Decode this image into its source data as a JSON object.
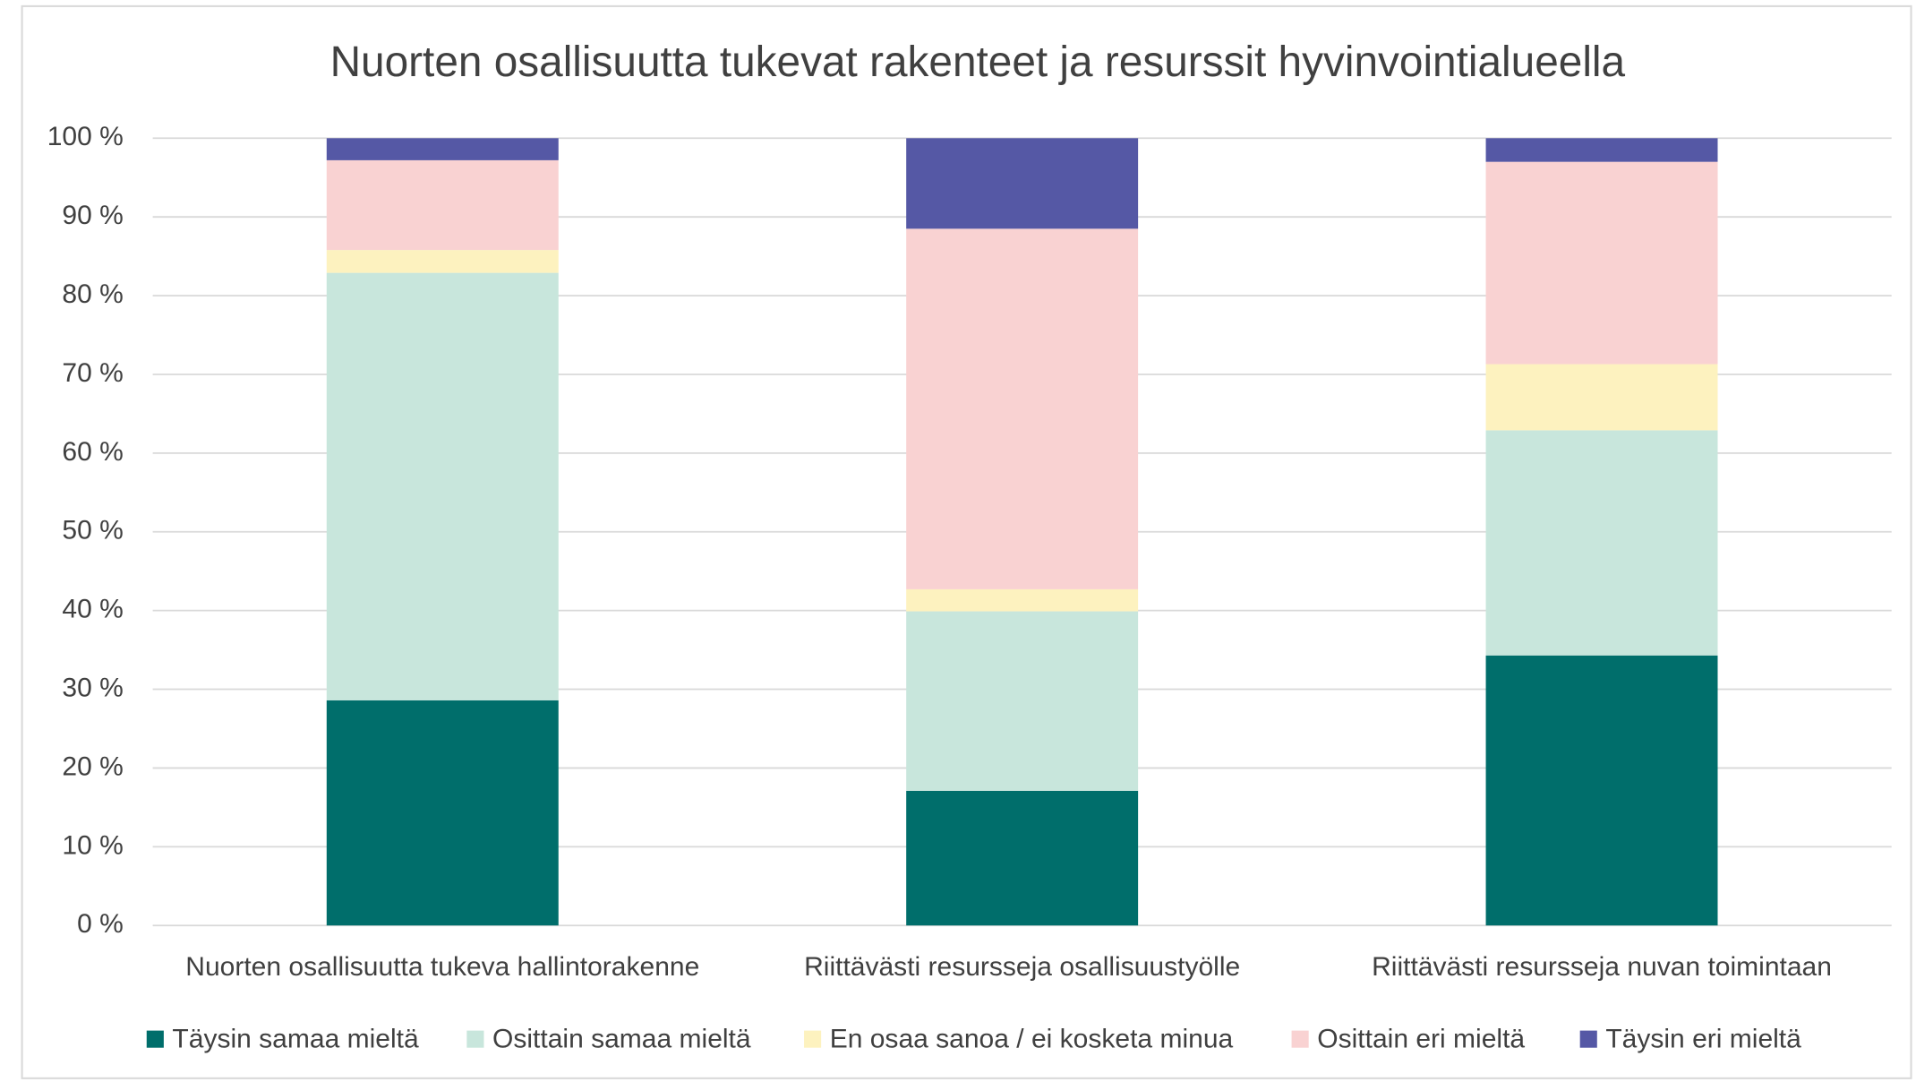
{
  "chart_data": {
    "type": "stacked_bar",
    "title": "Nuorten osallisuutta tukevat rakenteet ja resurssit hyvinvointialueella",
    "categories": [
      "Nuorten osallisuutta tukeva hallintorakenne",
      "Riittävästi resursseja osallisuustyölle",
      "Riittävästi resursseja nuvan toimintaan"
    ],
    "series": [
      {
        "name": "Täysin samaa mieltä",
        "color": "#006e6b",
        "values": [
          28.6,
          17.1,
          34.3
        ]
      },
      {
        "name": "Osittain samaa mieltä",
        "color": "#c8e6dc",
        "values": [
          54.3,
          22.8,
          28.6
        ]
      },
      {
        "name": "En osaa sanoa / ei kosketa minua",
        "color": "#fdf2bf",
        "values": [
          2.9,
          2.8,
          8.4
        ]
      },
      {
        "name": "Osittain eri mieltä",
        "color": "#f9d2d2",
        "values": [
          11.4,
          45.8,
          25.7
        ]
      },
      {
        "name": "Täysin eri mieltä",
        "color": "#5558a5",
        "values": [
          2.8,
          11.5,
          3.0
        ]
      }
    ],
    "ylim": [
      0,
      100
    ],
    "yticks": [
      {
        "value": 0,
        "label": "0 %"
      },
      {
        "value": 10,
        "label": "10 %"
      },
      {
        "value": 20,
        "label": "20 %"
      },
      {
        "value": 30,
        "label": "30 %"
      },
      {
        "value": 40,
        "label": "40 %"
      },
      {
        "value": 50,
        "label": "50 %"
      },
      {
        "value": 60,
        "label": "60 %"
      },
      {
        "value": 70,
        "label": "70 %"
      },
      {
        "value": 80,
        "label": "80 %"
      },
      {
        "value": 90,
        "label": "90 %"
      },
      {
        "value": 100,
        "label": "100 %"
      }
    ],
    "grid": true,
    "legend": "bottom"
  }
}
